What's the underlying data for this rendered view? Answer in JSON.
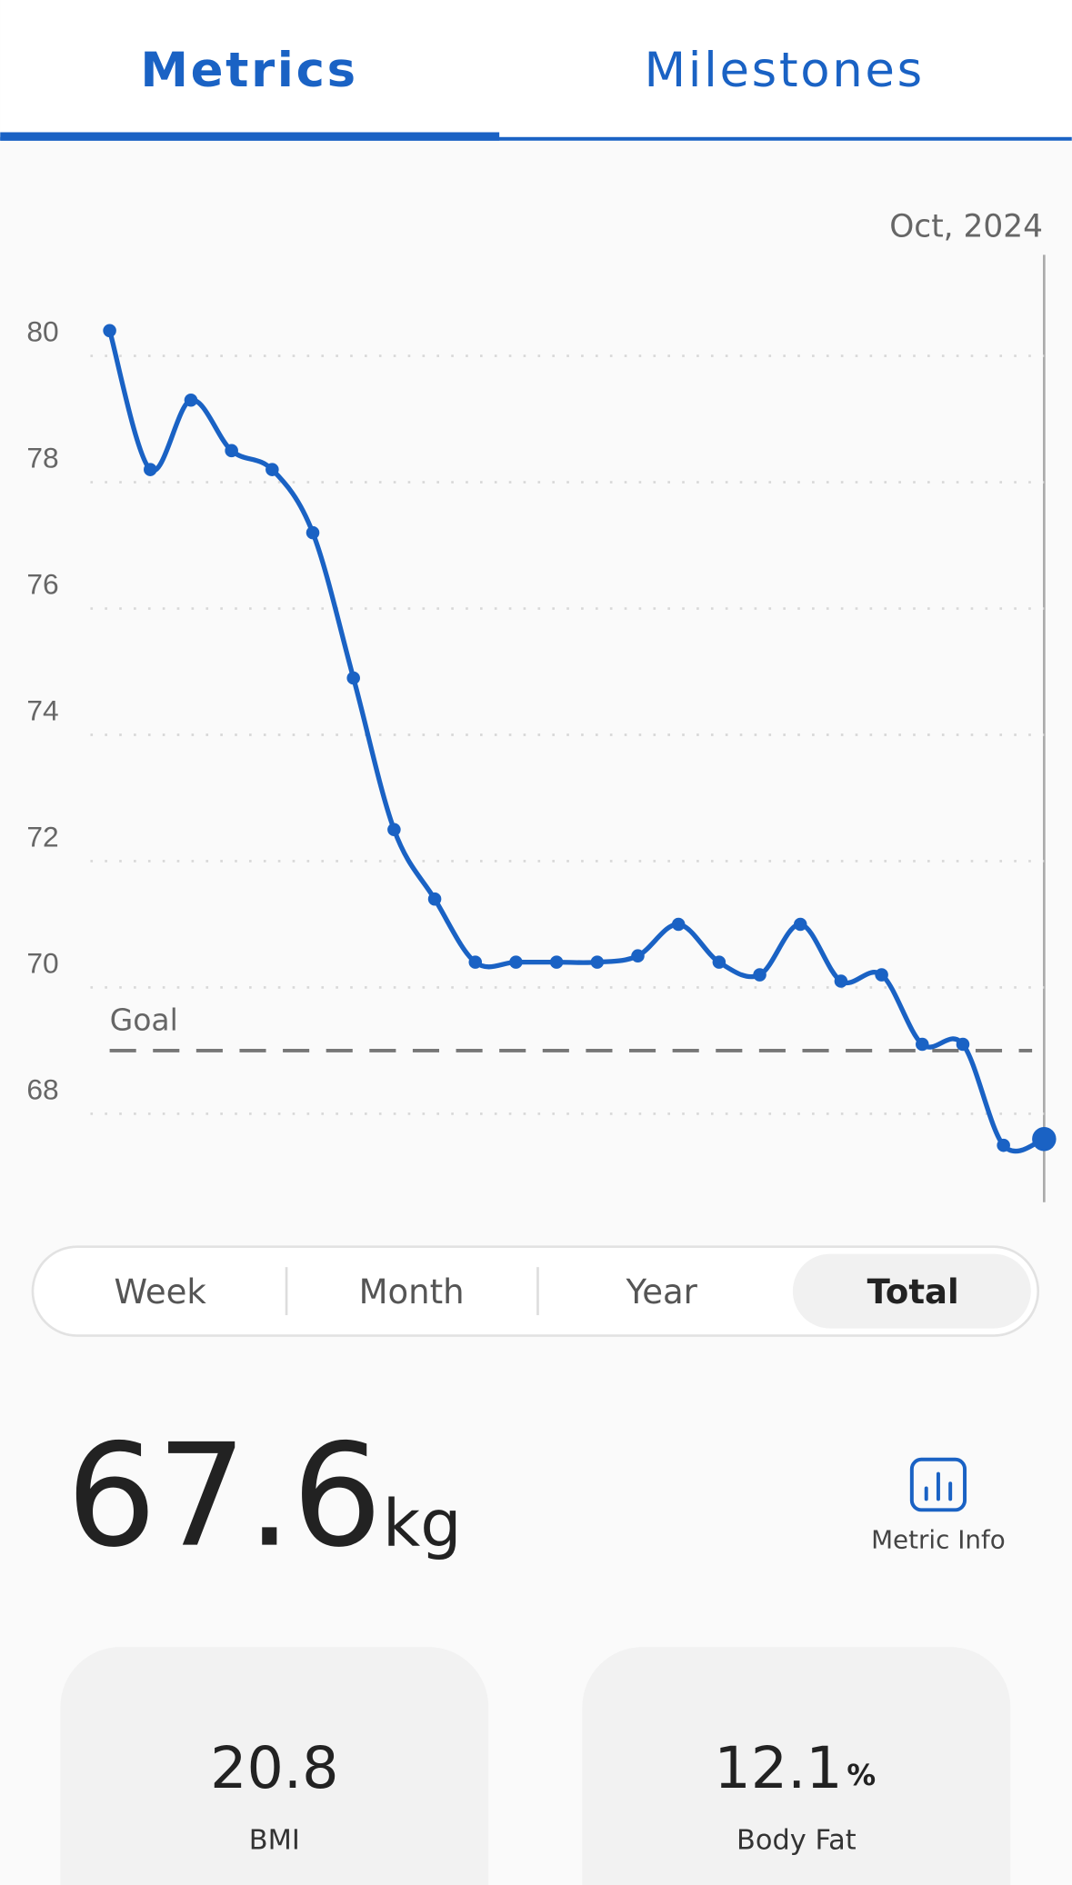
{
  "tabs": [
    "Metrics",
    "Milestones"
  ],
  "active_tab": 0,
  "chart_data": {
    "type": "line",
    "date_label": "Oct, 2024",
    "categories": [
      null,
      null,
      null,
      null,
      null,
      null,
      null,
      null,
      null,
      null,
      null,
      null,
      null,
      null,
      null,
      null,
      null,
      null,
      null,
      null,
      null,
      null,
      null,
      null
    ],
    "series": [
      {
        "name": null,
        "color": "#1a62c4",
        "values": [
          80.4,
          78.2,
          79.3,
          78.5,
          78.2,
          77.2,
          74.9,
          72.5,
          71.4,
          70.4,
          70.4,
          70.4,
          70.4,
          70.5,
          71.0,
          70.4,
          70.2,
          71.0,
          70.1,
          70.2,
          69.1,
          69.1,
          67.5,
          67.6
        ]
      }
    ],
    "ylim": [
      66.6,
      81.6
    ],
    "yticks": [
      68,
      70,
      72,
      74,
      76,
      78,
      80
    ],
    "grid": true,
    "goal": {
      "label": "Goal",
      "value": 69
    }
  },
  "ranges": [
    "Week",
    "Month",
    "Year",
    "Total"
  ],
  "active_range": 3,
  "current": {
    "value": 67.6,
    "unit": "kg"
  },
  "metric_info": "Metric Info",
  "cards": [
    {
      "value": 20.8,
      "label": "BMI"
    },
    {
      "value": 12.1,
      "unit": "%",
      "label": "Body Fat"
    }
  ]
}
